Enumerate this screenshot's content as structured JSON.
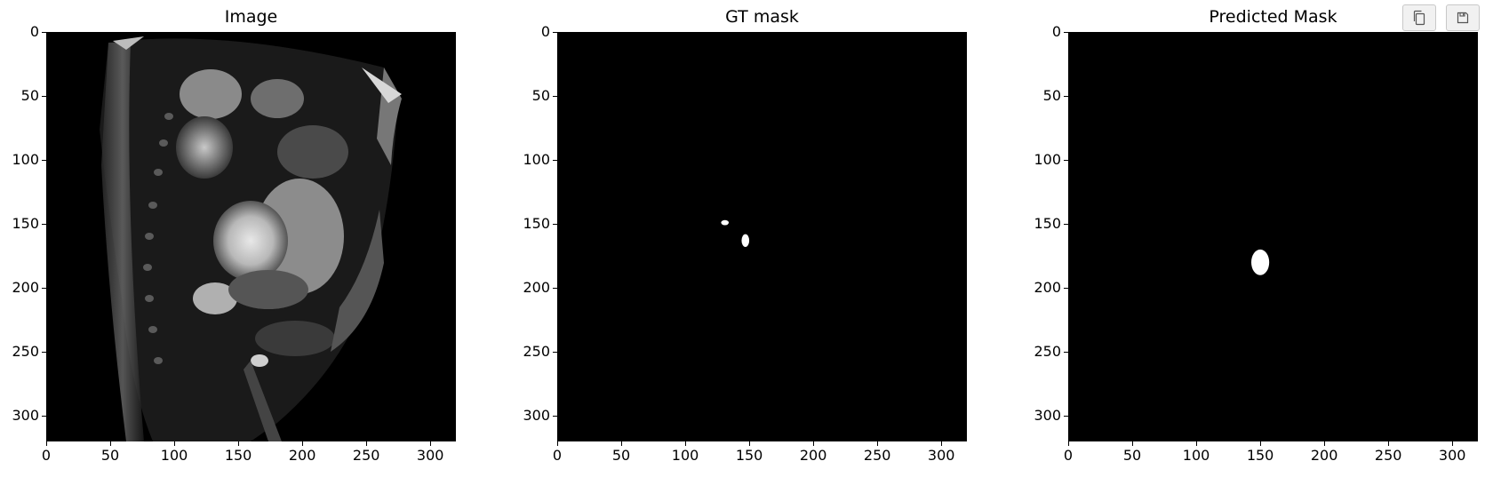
{
  "figure": {
    "panels": [
      {
        "title": "Image",
        "kind": "mri"
      },
      {
        "title": "GT mask",
        "kind": "gt"
      },
      {
        "title": "Predicted Mask",
        "kind": "pred"
      }
    ],
    "axes": {
      "xticks": [
        "0",
        "50",
        "100",
        "150",
        "200",
        "250",
        "300"
      ],
      "yticks": [
        "0",
        "50",
        "100",
        "150",
        "200",
        "250",
        "300"
      ],
      "x_values": [
        0,
        50,
        100,
        150,
        200,
        250,
        300
      ],
      "y_values": [
        0,
        50,
        100,
        150,
        200,
        250,
        300
      ],
      "extent": [
        0,
        320
      ]
    },
    "gt_regions": [
      {
        "x": 131,
        "y": 149,
        "rx": 3,
        "ry": 2
      },
      {
        "x": 147,
        "y": 163,
        "rx": 3,
        "ry": 5
      }
    ],
    "pred_regions": [
      {
        "x": 150,
        "y": 180,
        "rx": 7,
        "ry": 10
      }
    ]
  },
  "toolbar": {
    "copy_icon": "copy-icon",
    "save_icon": "save-icon"
  }
}
